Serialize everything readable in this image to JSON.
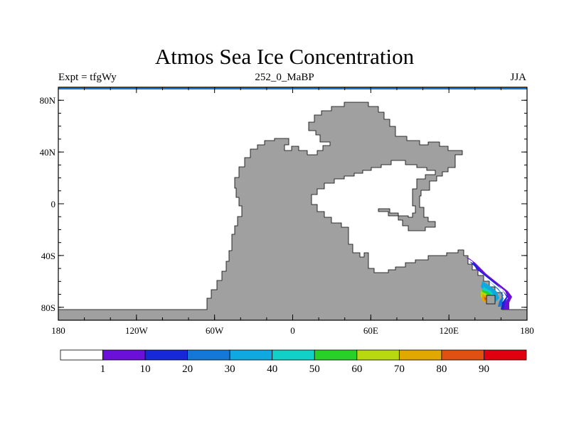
{
  "title": "Atmos Sea Ice Concentration",
  "subtitle_left": "Expt = tfgWy",
  "subtitle_center": "252_0_MaBP",
  "subtitle_right": "JJA",
  "map": {
    "lon_range": [
      -180,
      180
    ],
    "lat_range": [
      -90,
      90
    ],
    "land_color": "#a0a0a0",
    "ocean_color": "#ffffff",
    "x_ticks": [
      {
        "lon": -180,
        "label": "180"
      },
      {
        "lon": -120,
        "label": "120W"
      },
      {
        "lon": -60,
        "label": "60W"
      },
      {
        "lon": 0,
        "label": "0"
      },
      {
        "lon": 60,
        "label": "60E"
      },
      {
        "lon": 120,
        "label": "120E"
      },
      {
        "lon": 180,
        "label": "180"
      }
    ],
    "y_ticks": [
      {
        "lat": 80,
        "label": "80N"
      },
      {
        "lat": 40,
        "label": "40N"
      },
      {
        "lat": 0,
        "label": "0"
      },
      {
        "lat": -40,
        "label": "40S"
      },
      {
        "lat": -80,
        "label": "80S"
      }
    ]
  },
  "colorbar": {
    "colors": [
      "#ffffff",
      "#6a10d8",
      "#1628d8",
      "#1478d8",
      "#10a8e0",
      "#10d0c8",
      "#28d028",
      "#b8d810",
      "#e0a800",
      "#e05010",
      "#e00010"
    ],
    "labels": [
      "1",
      "10",
      "20",
      "30",
      "40",
      "50",
      "60",
      "70",
      "80",
      "90"
    ]
  }
}
